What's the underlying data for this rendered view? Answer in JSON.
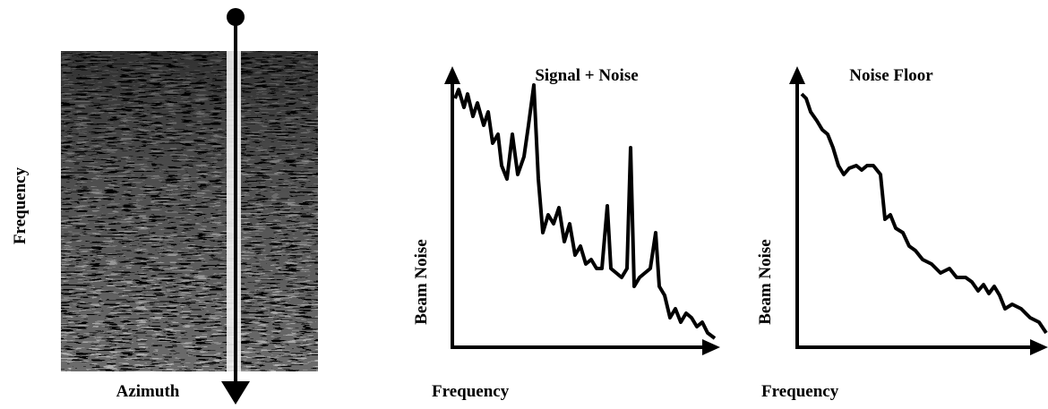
{
  "spectrogram": {
    "y_label": "Frequency",
    "x_label": "Azimuth"
  },
  "panels": [
    {
      "title": "Signal + Noise",
      "y_label": "Beam Noise",
      "x_label": "Frequency"
    },
    {
      "title": "Noise Floor",
      "y_label": "Beam Noise",
      "x_label": "Frequency"
    }
  ]
}
